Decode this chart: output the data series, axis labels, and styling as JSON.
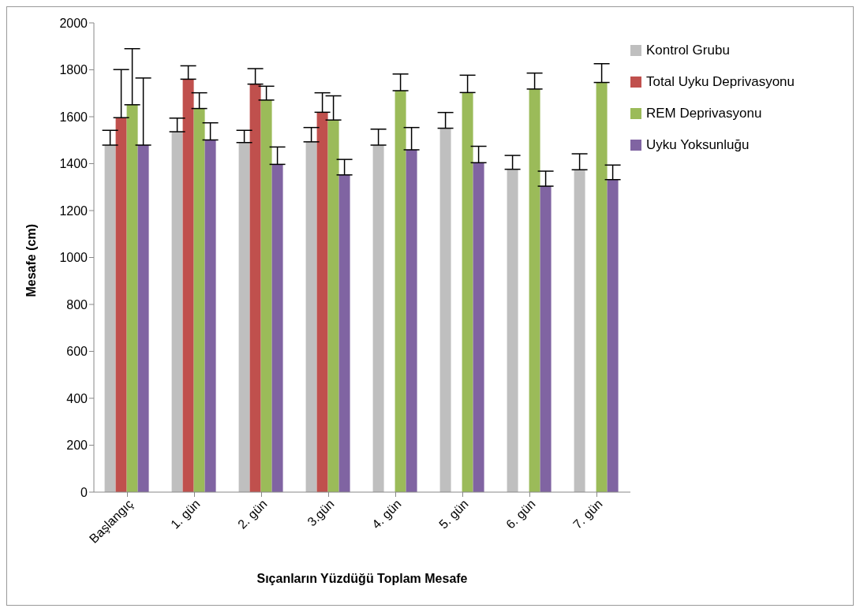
{
  "chart_data": {
    "type": "bar",
    "xlabel": "Sıçanların Yüzdüğü  Toplam Mesafe",
    "ylabel": "Mesafe (cm)",
    "categories": [
      "Başlangıç",
      "1. gün",
      "2. gün",
      "3.gün",
      "4. gün",
      "5. gün",
      "6. gün",
      "7. gün"
    ],
    "series": [
      {
        "name": "Kontrol Grubu",
        "color": "#bfbfbf",
        "values": [
          1479,
          1536,
          1490,
          1493,
          1479,
          1551,
          1376,
          1374
        ],
        "errors": [
          [
            1479,
            1542
          ],
          [
            1536,
            1594
          ],
          [
            1490,
            1542
          ],
          [
            1493,
            1554
          ],
          [
            1479,
            1547
          ],
          [
            1551,
            1618
          ],
          [
            1376,
            1435
          ],
          [
            1374,
            1442
          ]
        ]
      },
      {
        "name": "Total Uyku Deprivasyonu",
        "color": "#c0504d",
        "values": [
          1596,
          1760,
          1739,
          1619,
          null,
          null,
          null,
          null
        ],
        "errors": [
          [
            1596,
            1801
          ],
          [
            1760,
            1817
          ],
          [
            1739,
            1805
          ],
          [
            1619,
            1702
          ],
          null,
          null,
          null,
          null
        ]
      },
      {
        "name": "REM Deprivasyonu",
        "color": "#9bbb59",
        "values": [
          1651,
          1635,
          1671,
          1586,
          1711,
          1703,
          1718,
          1746
        ],
        "errors": [
          [
            1651,
            1890
          ],
          [
            1635,
            1702
          ],
          [
            1671,
            1730
          ],
          [
            1586,
            1689
          ],
          [
            1711,
            1782
          ],
          [
            1703,
            1777
          ],
          [
            1718,
            1786
          ],
          [
            1746,
            1826
          ]
        ]
      },
      {
        "name": "Uyku Yoksunluğu",
        "color": "#8064a2",
        "values": [
          1479,
          1501,
          1397,
          1352,
          1459,
          1404,
          1304,
          1332
        ],
        "errors": [
          [
            1479,
            1765
          ],
          [
            1501,
            1574
          ],
          [
            1397,
            1471
          ],
          [
            1352,
            1418
          ],
          [
            1459,
            1554
          ],
          [
            1404,
            1474
          ],
          [
            1304,
            1368
          ],
          [
            1332,
            1394
          ]
        ]
      }
    ],
    "ylim": [
      0,
      2000
    ],
    "yticks": [
      0,
      200,
      400,
      600,
      800,
      1000,
      1200,
      1400,
      1600,
      1800,
      2000
    ],
    "grid": false,
    "legend": "top right"
  }
}
